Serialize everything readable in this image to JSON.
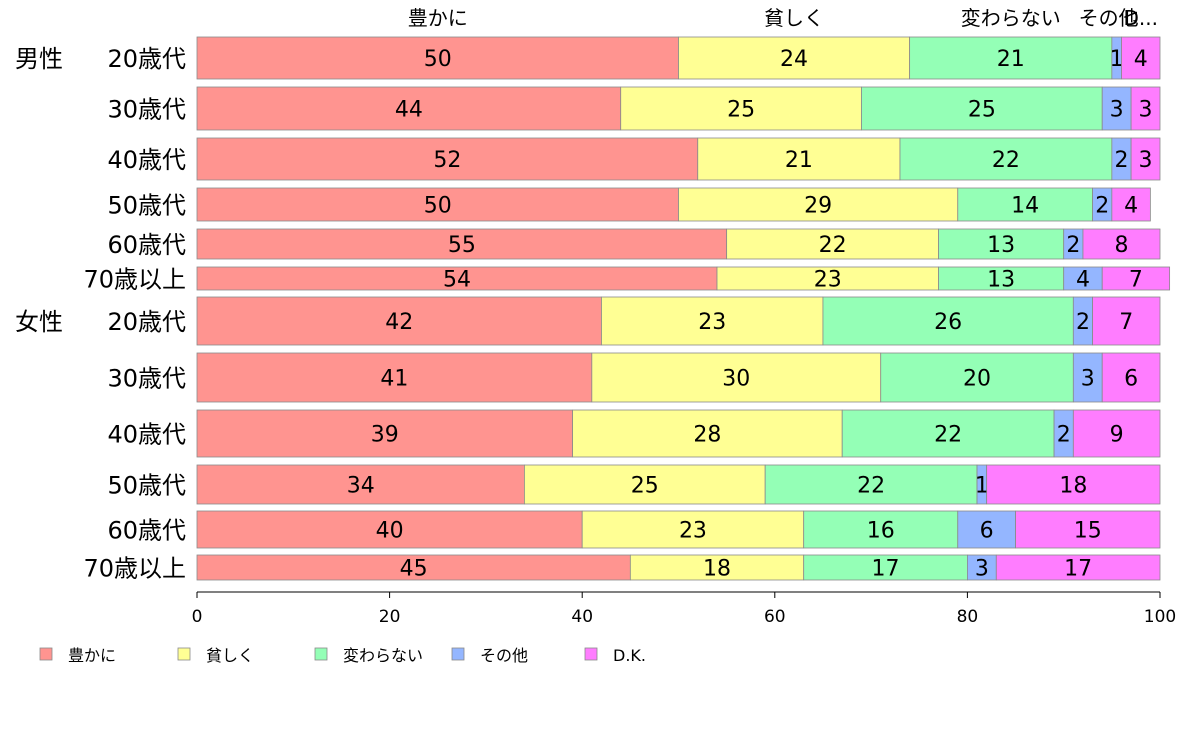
{
  "chart_data": {
    "type": "bar",
    "orientation": "horizontal",
    "stacked": true,
    "series": [
      {
        "name": "豊かに",
        "color": "#ff9490",
        "values": [
          50,
          44,
          52,
          50,
          55,
          54,
          42,
          41,
          39,
          34,
          40,
          45
        ]
      },
      {
        "name": "貧しく",
        "color": "#ffff94",
        "values": [
          24,
          25,
          21,
          29,
          22,
          23,
          23,
          30,
          28,
          25,
          23,
          18
        ]
      },
      {
        "name": "変わらない",
        "color": "#94ffb6",
        "values": [
          21,
          25,
          22,
          14,
          13,
          13,
          26,
          20,
          22,
          22,
          16,
          17
        ]
      },
      {
        "name": "その他",
        "color": "#94b6ff",
        "values": [
          1,
          3,
          2,
          2,
          2,
          4,
          2,
          3,
          2,
          1,
          6,
          3
        ]
      },
      {
        "name": "D.K.",
        "color": "#ff7dff",
        "values": [
          4,
          3,
          3,
          4,
          8,
          7,
          7,
          6,
          9,
          18,
          15,
          17
        ]
      }
    ],
    "categories": [
      {
        "group": "男性",
        "label": "20歳代"
      },
      {
        "group": "",
        "label": "30歳代"
      },
      {
        "group": "",
        "label": "40歳代"
      },
      {
        "group": "",
        "label": "50歳代"
      },
      {
        "group": "",
        "label": "60歳代"
      },
      {
        "group": "",
        "label": "70歳以上"
      },
      {
        "group": "女性",
        "label": "20歳代"
      },
      {
        "group": "",
        "label": "30歳代"
      },
      {
        "group": "",
        "label": "40歳代"
      },
      {
        "group": "",
        "label": "50歳代"
      },
      {
        "group": "",
        "label": "60歳代"
      },
      {
        "group": "",
        "label": "70歳以上"
      }
    ],
    "top_labels": [
      "豊かに",
      "貧しく",
      "変わらない",
      "その他",
      "D..."
    ],
    "xlim": [
      0,
      100
    ],
    "xticks": [
      0,
      20,
      40,
      60,
      80,
      100
    ],
    "legend_position": "bottom-left",
    "grid": false
  }
}
